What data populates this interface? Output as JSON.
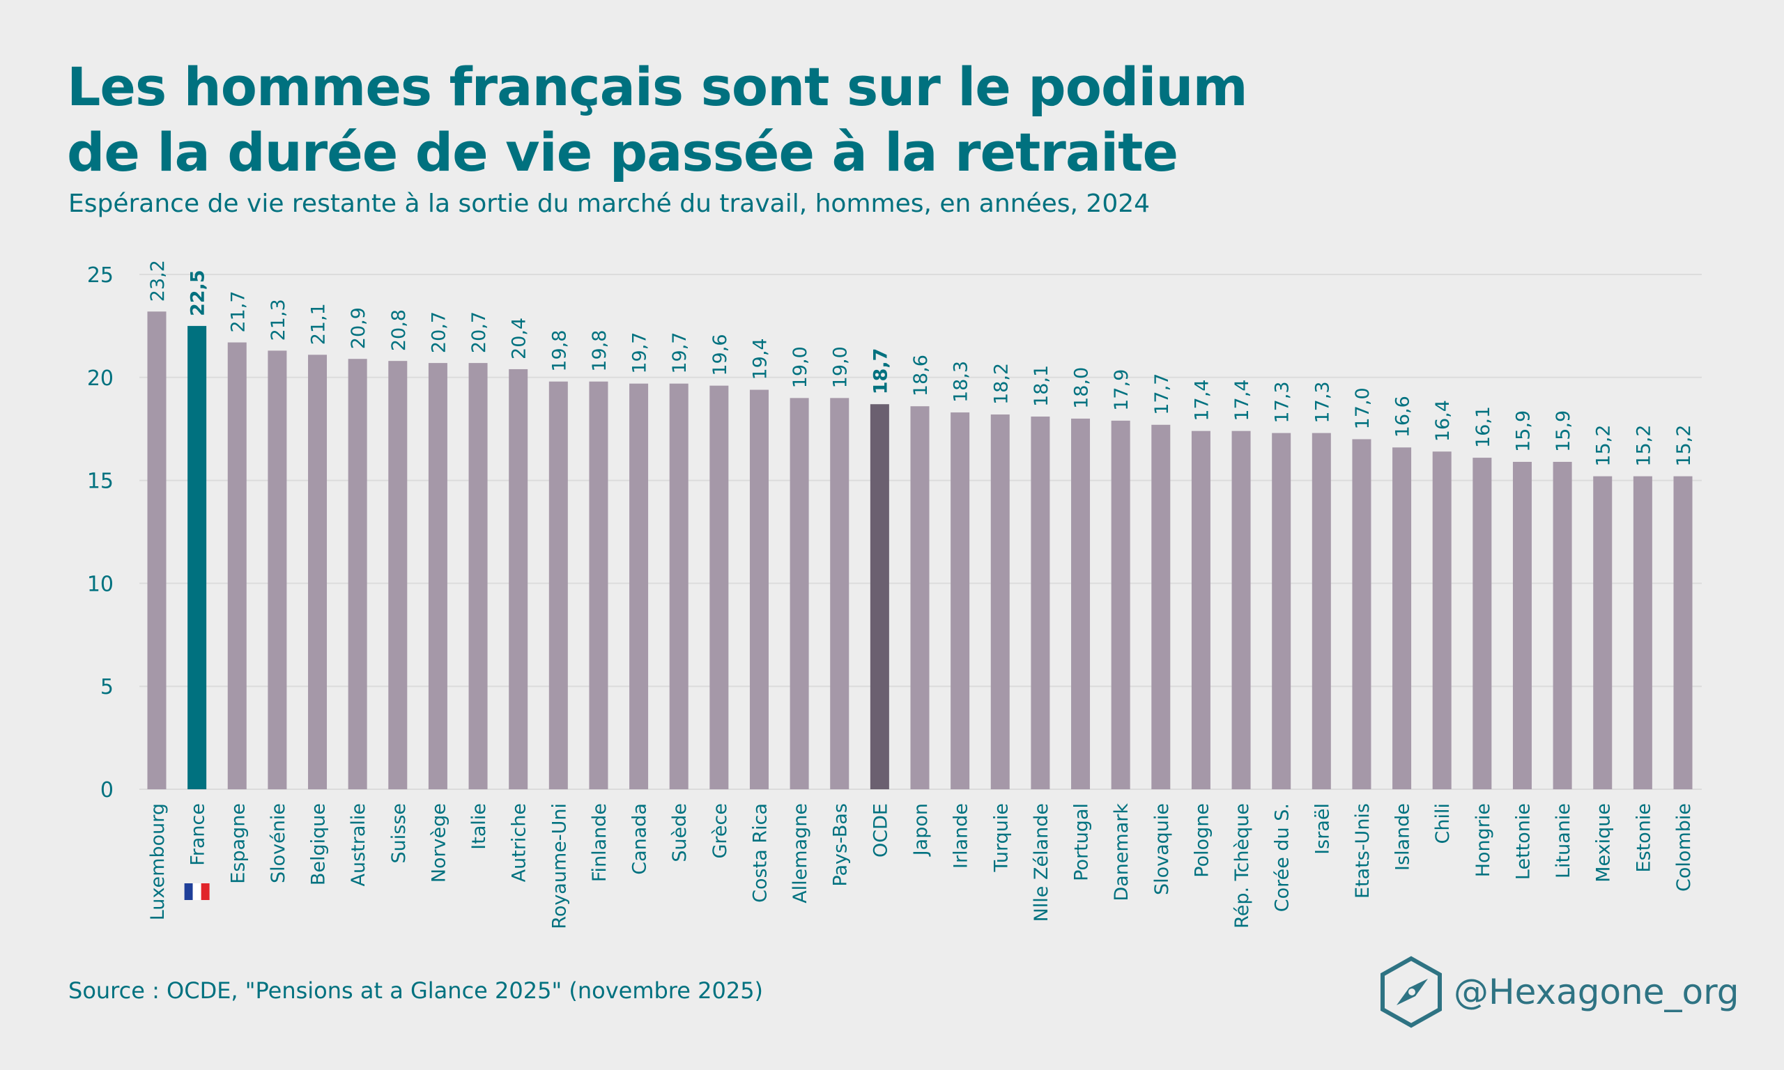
{
  "header": {
    "title_line1": "Les hommes français sont sur le podium",
    "title_line2": "de la durée de vie passée à la retraite",
    "subtitle": "Espérance de vie restante à la sortie du marché du travail, hommes, en années, 2024"
  },
  "footer": {
    "source": "Source : OCDE, \"Pensions at a Glance 2025\" (novembre 2025)",
    "handle": "@Hexagone_org"
  },
  "colors": {
    "default": "#a598a8",
    "france": "#00717f",
    "oecd": "#6b6070",
    "text": "#00717f",
    "grid": "#dcdcdc"
  },
  "chart_data": {
    "type": "bar",
    "title": "Les hommes français sont sur le podium de la durée de vie passée à la retraite",
    "subtitle": "Espérance de vie restante à la sortie du marché du travail, hommes, en années, 2024",
    "xlabel": "",
    "ylabel": "",
    "ylim": [
      0,
      25
    ],
    "yticks": [
      0,
      5,
      10,
      15,
      20,
      25
    ],
    "grid": true,
    "highlight": {
      "France": "france",
      "OCDE": "oecd"
    },
    "categories": [
      "Luxembourg",
      "France",
      "Espagne",
      "Slovénie",
      "Belgique",
      "Australie",
      "Suisse",
      "Norvège",
      "Italie",
      "Autriche",
      "Royaume-Uni",
      "Finlande",
      "Canada",
      "Suède",
      "Grèce",
      "Costa Rica",
      "Allemagne",
      "Pays-Bas",
      "OCDE",
      "Japon",
      "Irlande",
      "Turquie",
      "Nlle Zélande",
      "Portugal",
      "Danemark",
      "Slovaquie",
      "Pologne",
      "Rép. Tchèque",
      "Corée du S.",
      "Israël",
      "Etats-Unis",
      "Islande",
      "Chili",
      "Hongrie",
      "Lettonie",
      "Lituanie",
      "Mexique",
      "Estonie",
      "Colombie"
    ],
    "values": [
      23.2,
      22.5,
      21.7,
      21.3,
      21.1,
      20.9,
      20.8,
      20.7,
      20.7,
      20.4,
      19.8,
      19.8,
      19.7,
      19.7,
      19.6,
      19.4,
      19.0,
      19.0,
      18.7,
      18.6,
      18.3,
      18.2,
      18.1,
      18.0,
      17.9,
      17.7,
      17.4,
      17.4,
      17.3,
      17.3,
      17.0,
      16.6,
      16.4,
      16.1,
      15.9,
      15.9,
      15.2,
      15.2,
      15.2
    ]
  }
}
